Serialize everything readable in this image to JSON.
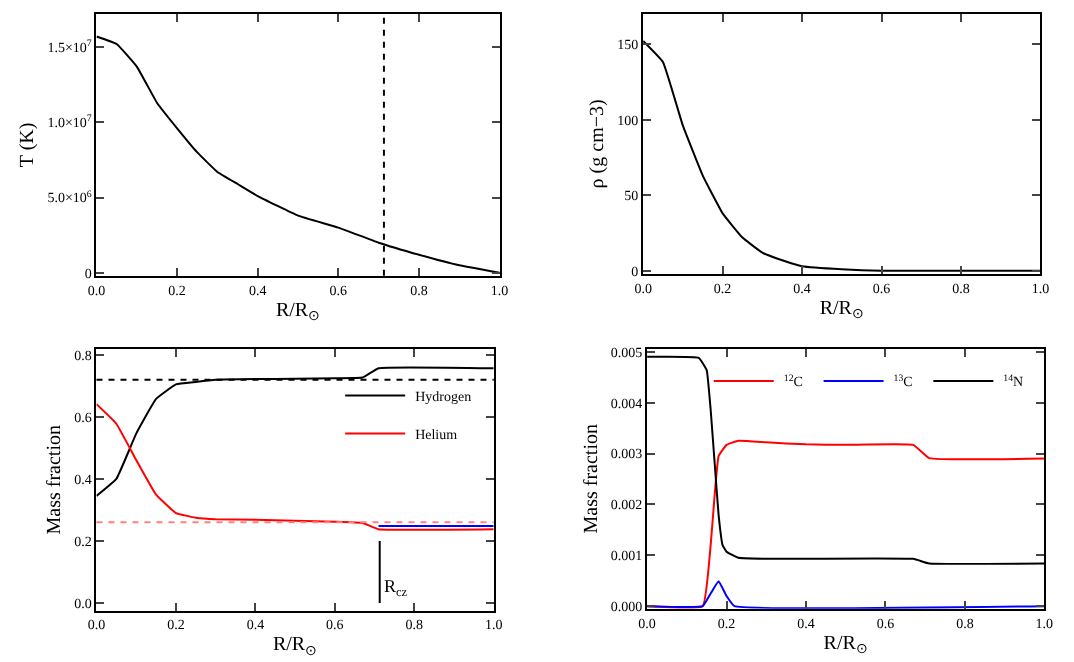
{
  "chart_data": [
    {
      "type": "line",
      "xlabel": "R/R$_{⊙}$",
      "ylabel": "T (K)",
      "xlim": [
        0,
        1
      ],
      "xticks": [
        {
          "value": 0,
          "label": "0.0"
        },
        {
          "value": 0.2,
          "label": "0.2"
        },
        {
          "value": 0.4,
          "label": "0.4"
        },
        {
          "value": 0.6,
          "label": "0.6"
        },
        {
          "value": 0.8,
          "label": "0.8"
        },
        {
          "value": 1,
          "label": "1.0"
        }
      ],
      "ylim": [
        -200000,
        17200000
      ],
      "yticks": [
        0,
        {
          "value": 5000000,
          "label": "5.0×10$^{6}$"
        },
        {
          "value": 10000000,
          "label": "1.0×10$^{7}$"
        },
        {
          "value": 15000000,
          "label": "1.5×10$^{7}$"
        }
      ],
      "x": [
        0,
        0.05,
        0.1,
        0.15,
        0.2,
        0.25,
        0.3,
        0.35,
        0.4,
        0.5,
        0.6,
        0.7,
        0.8,
        0.9,
        1.0
      ],
      "series": [
        {
          "color": "#000000",
          "values": [
            15700000,
            15200000,
            13700000,
            11300000,
            9600000,
            8000000,
            6700000,
            5900000,
            5100000,
            3800000,
            3000000,
            2000000,
            1200000,
            500000,
            0
          ]
        }
      ],
      "ref_lines": [
        {
          "axis": "x",
          "value": 0.713,
          "color": "#000000",
          "line_style": "dotted"
        }
      ]
    },
    {
      "type": "line",
      "xlabel": "R/R$_{⊙}$",
      "ylabel": "ρ (g cm−3)",
      "xlim": [
        0,
        1
      ],
      "xticks": [
        {
          "value": 0,
          "label": "0.0"
        },
        {
          "value": 0.2,
          "label": "0.2"
        },
        {
          "value": 0.4,
          "label": "0.4"
        },
        {
          "value": 0.6,
          "label": "0.6"
        },
        {
          "value": 0.8,
          "label": "0.8"
        },
        {
          "value": 1,
          "label": "1.0"
        }
      ],
      "ylim": [
        -2,
        170
      ],
      "yticks": [
        0,
        50,
        100,
        150
      ],
      "x": [
        0,
        0.05,
        0.1,
        0.15,
        0.2,
        0.25,
        0.3,
        0.35,
        0.4,
        0.5,
        0.6,
        0.8,
        1.0
      ],
      "series": [
        {
          "color": "#000000",
          "values": [
            152,
            138,
            96,
            63,
            38,
            22,
            12,
            7,
            3,
            1,
            0,
            0,
            0
          ]
        }
      ]
    },
    {
      "type": "line",
      "xlabel": "R/R$_{⊙}$",
      "ylabel": "Mass fraction",
      "xlim": [
        0,
        1
      ],
      "xticks": [
        {
          "value": 0,
          "label": "0.0"
        },
        {
          "value": 0.2,
          "label": "0.2"
        },
        {
          "value": 0.4,
          "label": "0.4"
        },
        {
          "value": 0.6,
          "label": "0.6"
        },
        {
          "value": 0.8,
          "label": "0.8"
        },
        {
          "value": 1,
          "label": "1.0"
        }
      ],
      "ylim": [
        -0.025,
        0.82
      ],
      "yticks": [
        {
          "value": 0,
          "label": "0.0"
        },
        {
          "value": 0.2,
          "label": "0.2"
        },
        {
          "value": 0.4,
          "label": "0.4"
        },
        {
          "value": 0.6,
          "label": "0.6"
        },
        {
          "value": 0.8,
          "label": "0.8"
        }
      ],
      "legend": "right",
      "series": [
        {
          "name": "Hydrogen",
          "color": "#000000",
          "x": [
            0,
            0.05,
            0.1,
            0.15,
            0.2,
            0.25,
            0.3,
            0.4,
            0.5,
            0.6,
            0.67,
            0.71,
            1.0
          ],
          "values": [
            0.345,
            0.4,
            0.546,
            0.658,
            0.705,
            0.713,
            0.72,
            0.722,
            0.723,
            0.725,
            0.727,
            0.757,
            0.757
          ]
        },
        {
          "name": "Helium",
          "color": "#ff0000",
          "x": [
            0,
            0.05,
            0.1,
            0.15,
            0.2,
            0.25,
            0.3,
            0.4,
            0.6,
            0.67,
            0.71,
            1.0
          ],
          "values": [
            0.641,
            0.578,
            0.461,
            0.349,
            0.29,
            0.275,
            0.27,
            0.268,
            0.262,
            0.258,
            0.238,
            0.238
          ]
        },
        {
          "color": "#0000ff",
          "x": [
            0.71,
            1.0
          ],
          "values": [
            0.248,
            0.248
          ]
        },
        {
          "color": "#000000",
          "x": [
            0.713,
            0.713
          ],
          "values": [
            0,
            0.2
          ]
        }
      ],
      "ref_lines": [
        {
          "axis": "y",
          "value": 0.72,
          "color": "#000000",
          "line_style": "dotted"
        },
        {
          "axis": "y",
          "value": 0.26,
          "color": "#ff8080",
          "line_style": "dotted"
        }
      ],
      "annotations": [
        {
          "text": "R$_{cz}$",
          "x": 0.713,
          "y": 0.05
        }
      ]
    },
    {
      "type": "line",
      "xlabel": "R/R$_{⊙}$",
      "ylabel": "Mass fraction",
      "xlim": [
        0,
        1
      ],
      "xticks": [
        {
          "value": 0,
          "label": "0.0"
        },
        {
          "value": 0.2,
          "label": "0.2"
        },
        {
          "value": 0.4,
          "label": "0.4"
        },
        {
          "value": 0.6,
          "label": "0.6"
        },
        {
          "value": 0.8,
          "label": "0.8"
        },
        {
          "value": 1,
          "label": "1.0"
        }
      ],
      "ylim": [
        -5e-05,
        0.00506
      ],
      "yticks": [
        {
          "value": 0,
          "label": "0.000"
        },
        {
          "value": 0.001,
          "label": "0.001"
        },
        {
          "value": 0.002,
          "label": "0.002"
        },
        {
          "value": 0.003,
          "label": "0.003"
        },
        {
          "value": 0.004,
          "label": "0.004"
        },
        {
          "value": 0.005,
          "label": "0.005"
        }
      ],
      "legend": "top right",
      "series": [
        {
          "name": "$^{12}$C",
          "color": "#ff0000",
          "x": [
            0,
            0.14,
            0.16,
            0.17,
            0.18,
            0.2,
            0.23,
            0.3,
            0.4,
            0.5,
            0.67,
            0.71,
            1.0
          ],
          "values": [
            0,
            0,
            0.0012,
            0.00218,
            0.00295,
            0.00317,
            0.00325,
            0.00322,
            0.00318,
            0.00317,
            0.00317,
            0.00291,
            0.0029
          ]
        },
        {
          "name": "$^{13}$C",
          "color": "#0000ff",
          "x": [
            0,
            0.14,
            0.16,
            0.18,
            0.2,
            0.22,
            1.0
          ],
          "values": [
            0,
            0,
            0.00025,
            0.00049,
            0.0002,
            0,
            0
          ]
        },
        {
          "name": "$^{14}$N",
          "color": "#000000",
          "x": [
            0,
            0.13,
            0.15,
            0.16,
            0.17,
            0.18,
            0.19,
            0.2,
            0.23,
            0.3,
            0.67,
            0.71,
            1.0
          ],
          "values": [
            0.0049,
            0.00488,
            0.00464,
            0.00386,
            0.00282,
            0.00179,
            0.0012,
            0.00107,
            0.00095,
            0.00093,
            0.00093,
            0.00084,
            0.00084
          ]
        }
      ]
    }
  ]
}
